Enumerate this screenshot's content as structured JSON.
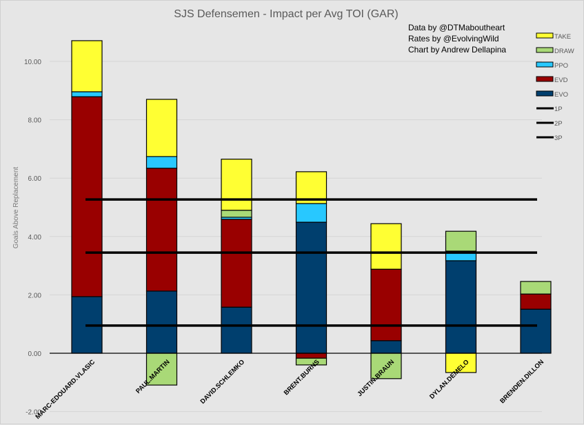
{
  "chart_data": {
    "type": "bar",
    "stacked": true,
    "title": "SJS Defensemen - Impact per Avg TOI (GAR)",
    "xlabel": "",
    "ylabel": "Goals Above Replacement",
    "ylim": [
      -2,
      11
    ],
    "yticks": [
      -2,
      0,
      2,
      4,
      6,
      8,
      10
    ],
    "ytick_labels": [
      "-2.00",
      "0.00",
      "2.00",
      "4.00",
      "6.00",
      "8.00",
      "10.00"
    ],
    "grid": true,
    "legend_position": "right",
    "credits": [
      "Data by @DTMaboutheart",
      "Rates by @EvolvingWild",
      "Chart by Andrew Dellapina"
    ],
    "categories": [
      "MARC-EDOUARD.VLASIC",
      "PAUL.MARTIN",
      "DAVID.SCHLEMKO",
      "BRENT.BURNS",
      "JUSTIN.BRAUN",
      "DYLAN.DEMELO",
      "BRENDEN.DILLON"
    ],
    "series": [
      {
        "name": "EVO",
        "color": "#003f6e",
        "values": [
          1.94,
          2.13,
          1.58,
          4.49,
          0.43,
          3.17,
          1.51
        ]
      },
      {
        "name": "EVD",
        "color": "#990000",
        "values": [
          6.85,
          4.21,
          3.01,
          -0.17,
          2.45,
          0,
          0.52
        ]
      },
      {
        "name": "PPO",
        "color": "#28c8ff",
        "values": [
          0.17,
          0.4,
          0.07,
          0.64,
          0,
          0.33,
          0
        ]
      },
      {
        "name": "DRAW",
        "color": "#a9d977",
        "values": [
          0,
          -1.09,
          0.24,
          -0.23,
          -0.87,
          0.68,
          0.43
        ]
      },
      {
        "name": "TAKE",
        "color": "#ffff33",
        "values": [
          1.75,
          1.96,
          1.75,
          1.09,
          1.56,
          -0.66,
          0
        ]
      }
    ],
    "reference_lines": [
      {
        "name": "1P",
        "value": 5.27,
        "color": "#000000"
      },
      {
        "name": "2P",
        "value": 3.45,
        "color": "#000000"
      },
      {
        "name": "3P",
        "value": 0.95,
        "color": "#000000"
      }
    ],
    "legend": [
      "TAKE",
      "DRAW",
      "PPO",
      "EVD",
      "EVO",
      "1P",
      "2P",
      "3P"
    ]
  }
}
